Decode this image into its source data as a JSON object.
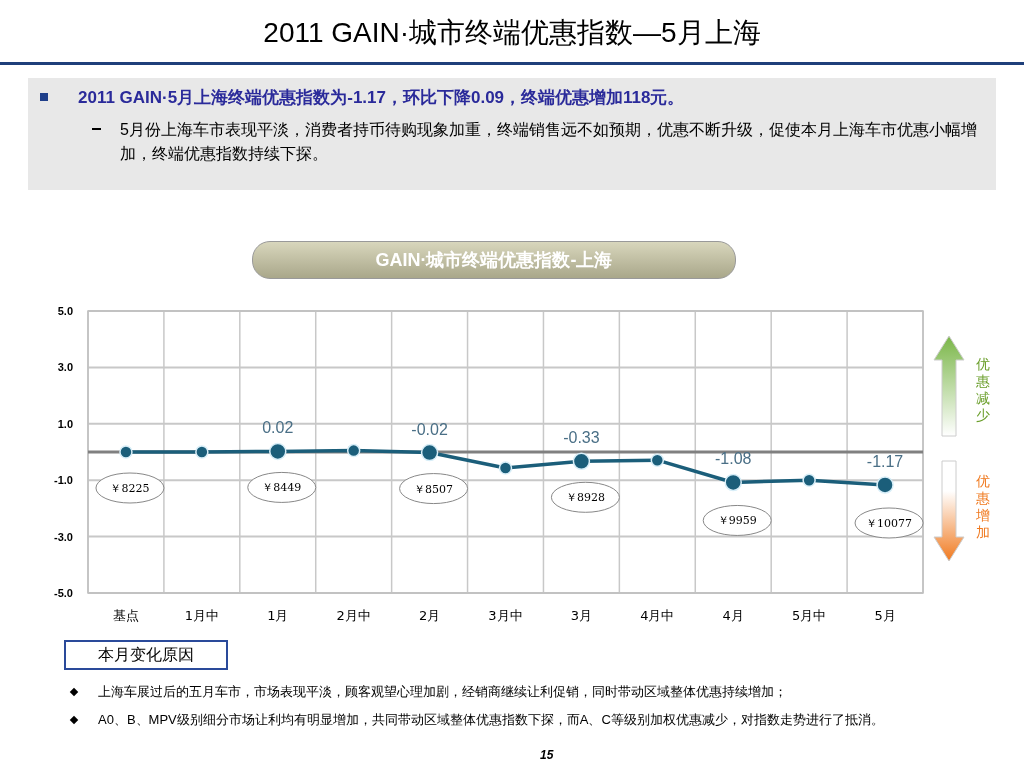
{
  "chart_data": {
    "type": "line",
    "title": "2011 GAIN·城市终端优惠指数—5月上海",
    "subtitle": "GAIN·城市终端优惠指数-上海",
    "categories": [
      "基点",
      "1月中",
      "1月",
      "2月中",
      "2月",
      "3月中",
      "3月",
      "4月中",
      "4月",
      "5月中",
      "5月"
    ],
    "series": [
      {
        "color": "#1b5e7a",
        "values": [
          0,
          0,
          0.02,
          0.05,
          -0.02,
          -0.57,
          -0.33,
          -0.29,
          -1.08,
          -1.0,
          -1.17
        ],
        "value_labels": [
          null,
          null,
          "0.02",
          null,
          "-0.02",
          null,
          "-0.33",
          null,
          "-1.08",
          null,
          "-1.17"
        ]
      }
    ],
    "ylim": [
      -5,
      5
    ],
    "yticks": [
      {
        "value": 5,
        "label": "5.0"
      },
      {
        "value": 3,
        "label": "3.0"
      },
      {
        "value": 1,
        "label": "1.0"
      },
      {
        "value": -1,
        "label": "-1.0"
      },
      {
        "value": -3,
        "label": "-3.0"
      },
      {
        "value": -5,
        "label": "-5.0"
      }
    ],
    "grid": true,
    "marker": "circle",
    "line_style": "solid",
    "ref_lines": [
      {
        "axis": "y",
        "value": 0,
        "color": "#808080"
      }
    ],
    "annotations": [
      "2011 GAIN·5月上海终端优惠指数为-1.17，环比下降0.09，终端优惠增加118元。",
      "5月份上海车市表现平淡，消费者持币待购现象加重，终端销售远不如预期，优惠不断升级，促使本月上海车市优惠小幅增加，终端优惠指数持续下探。",
      {
        "text": "￥8225",
        "x": "基点",
        "y": 0
      },
      {
        "text": "￥8449",
        "x": "1月",
        "y": 0.02
      },
      {
        "text": "￥8507",
        "x": "2月",
        "y": -0.02
      },
      {
        "text": "￥8928",
        "x": "3月",
        "y": -0.33
      },
      {
        "text": "￥9959",
        "x": "4月",
        "y": -1.08
      },
      {
        "text": "￥10077",
        "x": "5月",
        "y": -1.17
      },
      "优惠减少",
      "优惠增加",
      "本月变化原因",
      "上海车展过后的五月车市，市场表现平淡，顾客观望心理加剧，经销商继续让利促销，同时带动区域整体优惠持续增加；",
      "A0、B、MPV级别细分市场让利均有明显增加，共同带动区域整体优惠指数下探，而A、C等级别加权优惠减少，对指数走势进行了抵消。",
      "15"
    ]
  }
}
